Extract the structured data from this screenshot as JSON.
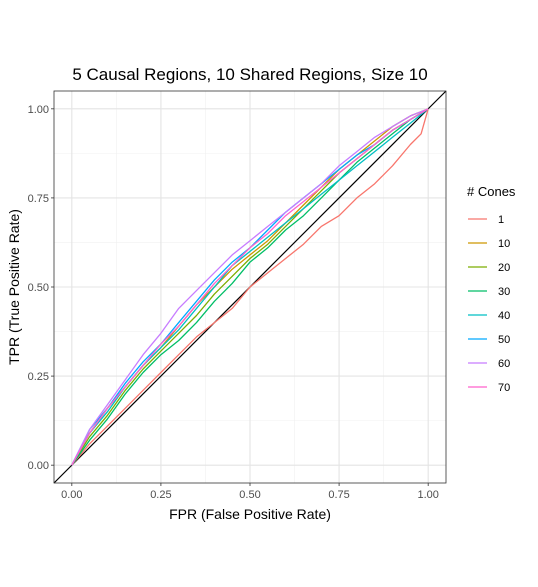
{
  "chart_data": {
    "type": "line",
    "title": "5 Causal Regions, 10 Shared Regions, Size 10",
    "xlabel": "FPR (False Positive Rate)",
    "ylabel": "TPR (True Positive Rate)",
    "xlim": [
      -0.05,
      1.05
    ],
    "ylim": [
      -0.05,
      1.05
    ],
    "x_ticks": [
      "0.00",
      "0.25",
      "0.50",
      "0.75",
      "1.00"
    ],
    "y_ticks": [
      "0.00",
      "0.25",
      "0.50",
      "0.75",
      "1.00"
    ],
    "grid": true,
    "legend": {
      "title": "# Cones",
      "position": "right"
    },
    "reference_line": {
      "from": [
        0,
        0
      ],
      "to": [
        1,
        1
      ],
      "color": "#000000"
    },
    "series": [
      {
        "name": "1",
        "color": "#F8766D",
        "x": [
          0,
          0.05,
          0.1,
          0.15,
          0.2,
          0.25,
          0.3,
          0.35,
          0.4,
          0.45,
          0.5,
          0.55,
          0.6,
          0.65,
          0.7,
          0.75,
          0.8,
          0.85,
          0.9,
          0.95,
          0.98,
          1
        ],
        "y": [
          0,
          0.06,
          0.11,
          0.16,
          0.21,
          0.26,
          0.31,
          0.36,
          0.4,
          0.44,
          0.5,
          0.54,
          0.58,
          0.62,
          0.67,
          0.7,
          0.75,
          0.79,
          0.84,
          0.9,
          0.93,
          1
        ]
      },
      {
        "name": "10",
        "color": "#CD9600",
        "x": [
          0,
          0.05,
          0.1,
          0.15,
          0.2,
          0.25,
          0.3,
          0.35,
          0.4,
          0.45,
          0.5,
          0.55,
          0.6,
          0.65,
          0.7,
          0.75,
          0.8,
          0.85,
          0.9,
          0.95,
          1
        ],
        "y": [
          0,
          0.09,
          0.16,
          0.22,
          0.28,
          0.33,
          0.39,
          0.45,
          0.5,
          0.55,
          0.59,
          0.63,
          0.68,
          0.73,
          0.78,
          0.83,
          0.87,
          0.91,
          0.95,
          0.98,
          1
        ]
      },
      {
        "name": "20",
        "color": "#7CAE00",
        "x": [
          0,
          0.05,
          0.1,
          0.15,
          0.2,
          0.25,
          0.3,
          0.35,
          0.4,
          0.45,
          0.5,
          0.55,
          0.6,
          0.65,
          0.7,
          0.75,
          0.8,
          0.85,
          0.9,
          0.95,
          1
        ],
        "y": [
          0,
          0.08,
          0.14,
          0.21,
          0.27,
          0.32,
          0.37,
          0.42,
          0.48,
          0.53,
          0.58,
          0.62,
          0.67,
          0.72,
          0.77,
          0.82,
          0.86,
          0.9,
          0.94,
          0.97,
          1
        ]
      },
      {
        "name": "30",
        "color": "#00BE67",
        "x": [
          0,
          0.05,
          0.1,
          0.15,
          0.2,
          0.25,
          0.3,
          0.35,
          0.4,
          0.45,
          0.5,
          0.55,
          0.6,
          0.65,
          0.7,
          0.75,
          0.8,
          0.85,
          0.9,
          0.95,
          1
        ],
        "y": [
          0,
          0.07,
          0.13,
          0.2,
          0.26,
          0.31,
          0.35,
          0.4,
          0.46,
          0.51,
          0.57,
          0.61,
          0.66,
          0.7,
          0.75,
          0.8,
          0.85,
          0.89,
          0.93,
          0.97,
          1
        ]
      },
      {
        "name": "40",
        "color": "#00BFC4",
        "x": [
          0,
          0.05,
          0.1,
          0.15,
          0.2,
          0.25,
          0.3,
          0.35,
          0.4,
          0.45,
          0.5,
          0.55,
          0.6,
          0.65,
          0.7,
          0.75,
          0.8,
          0.85,
          0.9,
          0.95,
          1
        ],
        "y": [
          0,
          0.09,
          0.15,
          0.22,
          0.28,
          0.33,
          0.38,
          0.44,
          0.5,
          0.56,
          0.6,
          0.64,
          0.68,
          0.72,
          0.76,
          0.8,
          0.84,
          0.88,
          0.92,
          0.96,
          1
        ]
      },
      {
        "name": "50",
        "color": "#00A9FF",
        "x": [
          0,
          0.05,
          0.1,
          0.15,
          0.2,
          0.25,
          0.3,
          0.35,
          0.4,
          0.45,
          0.5,
          0.55,
          0.6,
          0.65,
          0.7,
          0.75,
          0.8,
          0.85,
          0.9,
          0.95,
          1
        ],
        "y": [
          0,
          0.1,
          0.16,
          0.23,
          0.29,
          0.34,
          0.4,
          0.46,
          0.52,
          0.57,
          0.61,
          0.66,
          0.71,
          0.75,
          0.79,
          0.83,
          0.87,
          0.9,
          0.94,
          0.97,
          1
        ]
      },
      {
        "name": "60",
        "color": "#C77CFF",
        "x": [
          0,
          0.05,
          0.1,
          0.15,
          0.2,
          0.25,
          0.3,
          0.35,
          0.4,
          0.45,
          0.5,
          0.55,
          0.6,
          0.65,
          0.7,
          0.75,
          0.8,
          0.85,
          0.9,
          0.95,
          1
        ],
        "y": [
          0,
          0.1,
          0.17,
          0.24,
          0.31,
          0.37,
          0.44,
          0.49,
          0.54,
          0.59,
          0.63,
          0.67,
          0.71,
          0.75,
          0.79,
          0.84,
          0.88,
          0.92,
          0.95,
          0.98,
          1
        ]
      },
      {
        "name": "70",
        "color": "#FF61CC",
        "x": [
          0,
          0.05,
          0.1,
          0.15,
          0.2,
          0.25,
          0.3,
          0.35,
          0.4,
          0.45,
          0.5,
          0.55,
          0.6,
          0.65,
          0.7,
          0.75,
          0.8,
          0.85,
          0.9,
          0.95,
          1
        ],
        "y": [
          0,
          0.09,
          0.16,
          0.22,
          0.28,
          0.34,
          0.39,
          0.45,
          0.51,
          0.56,
          0.61,
          0.65,
          0.7,
          0.74,
          0.78,
          0.82,
          0.86,
          0.9,
          0.94,
          0.97,
          1
        ]
      }
    ]
  }
}
